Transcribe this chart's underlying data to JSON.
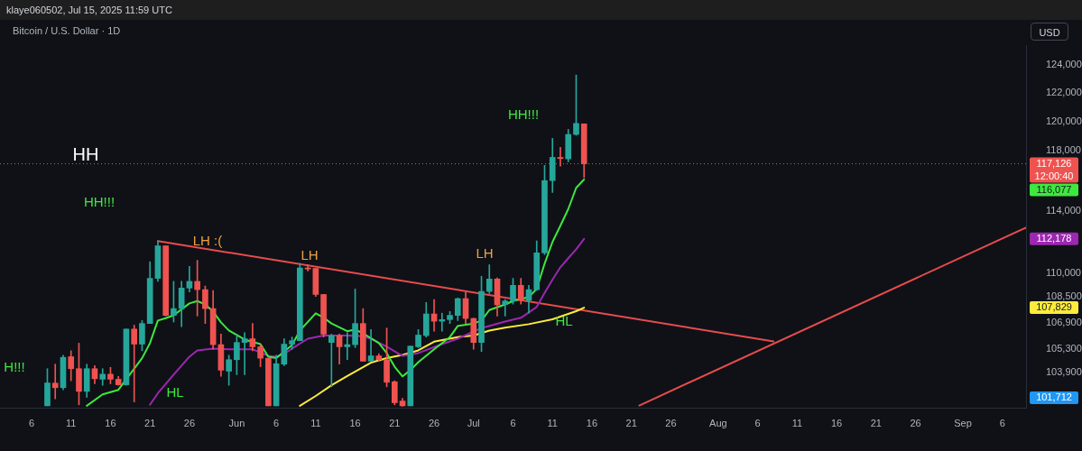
{
  "chart_data": {
    "type": "candlestick",
    "title": "Bitcoin / U.S. Dollar · 1D",
    "subtitle": "klaye060502, Jul 15, 2025 11:59 UTC",
    "ylabel": "USD",
    "x": [
      "2025-05-08",
      "2025-05-09",
      "2025-05-10",
      "2025-05-11",
      "2025-05-12",
      "2025-05-13",
      "2025-05-14",
      "2025-05-15",
      "2025-05-16",
      "2025-05-17",
      "2025-05-18",
      "2025-05-19",
      "2025-05-20",
      "2025-05-21",
      "2025-05-22",
      "2025-05-23",
      "2025-05-24",
      "2025-05-25",
      "2025-05-26",
      "2025-05-27",
      "2025-05-28",
      "2025-05-29",
      "2025-05-30",
      "2025-05-31",
      "2025-06-01",
      "2025-06-02",
      "2025-06-03",
      "2025-06-04",
      "2025-06-05",
      "2025-06-06",
      "2025-06-07",
      "2025-06-08",
      "2025-06-09",
      "2025-06-10",
      "2025-06-11",
      "2025-06-12",
      "2025-06-13",
      "2025-06-14",
      "2025-06-15",
      "2025-06-16",
      "2025-06-17",
      "2025-06-18",
      "2025-06-19",
      "2025-06-20",
      "2025-06-21",
      "2025-06-22",
      "2025-06-23",
      "2025-06-24",
      "2025-06-25",
      "2025-06-26",
      "2025-06-27",
      "2025-06-28",
      "2025-06-29",
      "2025-06-30",
      "2025-07-01",
      "2025-07-02",
      "2025-07-03",
      "2025-07-04",
      "2025-07-05",
      "2025-07-06",
      "2025-07-07",
      "2025-07-08",
      "2025-07-09",
      "2025-07-10",
      "2025-07-11",
      "2025-07-12",
      "2025-07-13",
      "2025-07-14",
      "2025-07-15"
    ],
    "ohlc": [
      [
        101910,
        104110,
        101910,
        103260
      ],
      [
        103250,
        104380,
        102320,
        102980
      ],
      [
        102980,
        104920,
        102850,
        104790
      ],
      [
        104830,
        105190,
        103390,
        104110
      ],
      [
        104110,
        105650,
        101970,
        102760
      ],
      [
        102760,
        104380,
        102410,
        104110
      ],
      [
        104110,
        104290,
        103210,
        103510
      ],
      [
        103480,
        104110,
        103120,
        103780
      ],
      [
        103780,
        104190,
        103210,
        103480
      ],
      [
        103480,
        103650,
        103120,
        103150
      ],
      [
        103150,
        106510,
        103120,
        106510
      ],
      [
        106510,
        106750,
        102140,
        105590
      ],
      [
        105590,
        107030,
        105190,
        106850
      ],
      [
        106850,
        110710,
        106850,
        109660
      ],
      [
        109660,
        112050,
        109470,
        111730
      ],
      [
        111730,
        111730,
        107310,
        107350
      ],
      [
        107350,
        109470,
        106940,
        107770
      ],
      [
        107770,
        109470,
        106660,
        109050
      ],
      [
        109050,
        110420,
        108810,
        109470
      ],
      [
        109470,
        110800,
        107310,
        108950
      ],
      [
        108950,
        109180,
        106850,
        107770
      ],
      [
        107770,
        108900,
        105280,
        105560
      ],
      [
        105560,
        106200,
        103650,
        104020
      ],
      [
        103960,
        104920,
        103120,
        104650
      ],
      [
        104650,
        106200,
        103750,
        105690
      ],
      [
        105690,
        106290,
        103750,
        105920
      ],
      [
        105920,
        106850,
        105190,
        105430
      ],
      [
        105430,
        105560,
        104230,
        104740
      ],
      [
        104740,
        104740,
        101910,
        101910
      ],
      [
        101910,
        104920,
        101910,
        104410
      ],
      [
        104380,
        105920,
        104290,
        105590
      ],
      [
        105590,
        106020,
        105280,
        105800
      ],
      [
        105800,
        110610,
        105800,
        110320
      ],
      [
        110320,
        110530,
        110130,
        110250
      ],
      [
        110290,
        110290,
        108520,
        108650
      ],
      [
        108650,
        108650,
        106020,
        106200
      ],
      [
        105690,
        106200,
        103030,
        106110
      ],
      [
        106110,
        106200,
        104380,
        105430
      ],
      [
        105430,
        106290,
        104650,
        105560
      ],
      [
        105560,
        108990,
        105380,
        106850
      ],
      [
        106850,
        107770,
        104560,
        104560
      ],
      [
        104560,
        106480,
        104560,
        104880
      ],
      [
        104880,
        105010,
        104560,
        104650
      ],
      [
        104650,
        106570,
        103030,
        103300
      ],
      [
        103330,
        103390,
        101970,
        102090
      ],
      [
        102190,
        102350,
        101880,
        101910
      ],
      [
        101910,
        105470,
        101910,
        105470
      ],
      [
        105430,
        106480,
        105380,
        106140
      ],
      [
        106110,
        108150,
        106020,
        107440
      ],
      [
        107440,
        108330,
        106380,
        106990
      ],
      [
        106990,
        107490,
        106380,
        107090
      ],
      [
        107090,
        107590,
        106850,
        107350
      ],
      [
        107350,
        108430,
        107030,
        108390
      ],
      [
        108390,
        108810,
        106850,
        107160
      ],
      [
        107160,
        107180,
        105280,
        105690
      ],
      [
        105690,
        109790,
        105140,
        108840
      ],
      [
        108840,
        110520,
        108710,
        109620
      ],
      [
        109620,
        109690,
        107310,
        108000
      ],
      [
        108020,
        108330,
        107310,
        108240
      ],
      [
        108240,
        109660,
        108050,
        109220
      ],
      [
        109220,
        109660,
        108050,
        108280
      ],
      [
        108280,
        109220,
        107490,
        108950
      ],
      [
        108950,
        112050,
        108900,
        111280
      ],
      [
        111280,
        117020,
        111170,
        116000
      ],
      [
        116000,
        118850,
        115210,
        117560
      ],
      [
        117560,
        118240,
        116970,
        117480
      ],
      [
        117460,
        119470,
        117260,
        119120
      ],
      [
        119120,
        123260,
        119060,
        119880
      ],
      [
        119850,
        119850,
        116200,
        117126
      ]
    ],
    "colors": [
      "#26a69a",
      "#ef5350",
      "#26a69a",
      "#ef5350",
      "#ef5350",
      "#26a69a",
      "#ef5350",
      "#26a69a",
      "#ef5350",
      "#ef5350",
      "#26a69a",
      "#ef5350",
      "#26a69a",
      "#26a69a",
      "#26a69a",
      "#ef5350",
      "#26a69a",
      "#26a69a",
      "#26a69a",
      "#ef5350",
      "#ef5350",
      "#ef5350",
      "#ef5350",
      "#26a69a",
      "#26a69a",
      "#26a69a",
      "#ef5350",
      "#ef5350",
      "#ef5350",
      "#26a69a",
      "#26a69a",
      "#26a69a",
      "#26a69a",
      "#ef5350",
      "#ef5350",
      "#ef5350",
      "#26a69a",
      "#ef5350",
      "#26a69a",
      "#26a69a",
      "#ef5350",
      "#26a69a",
      "#ef5350",
      "#ef5350",
      "#ef5350",
      "#ef5350",
      "#26a69a",
      "#26a69a",
      "#26a69a",
      "#ef5350",
      "#26a69a",
      "#26a69a",
      "#26a69a",
      "#ef5350",
      "#ef5350",
      "#26a69a",
      "#26a69a",
      "#ef5350",
      "#26a69a",
      "#26a69a",
      "#ef5350",
      "#26a69a",
      "#26a69a",
      "#26a69a",
      "#26a69a",
      "#ef5350",
      "#26a69a",
      "#26a69a",
      "#ef5350"
    ],
    "series": [
      {
        "type": "line",
        "color": "#3ee83e",
        "x": [
          "2025-05-13",
          "2025-05-15",
          "2025-05-17",
          "2025-05-18",
          "2025-05-20",
          "2025-05-21",
          "2025-05-22",
          "2025-05-23",
          "2025-05-24",
          "2025-05-26",
          "2025-05-27",
          "2025-05-28",
          "2025-05-29",
          "2025-05-30",
          "2025-05-31",
          "2025-06-02",
          "2025-06-04",
          "2025-06-05",
          "2025-06-06",
          "2025-06-07",
          "2025-06-08",
          "2025-06-09",
          "2025-06-11",
          "2025-06-12",
          "2025-06-13",
          "2025-06-15",
          "2025-06-16",
          "2025-06-17",
          "2025-06-19",
          "2025-06-20",
          "2025-06-21",
          "2025-06-22",
          "2025-06-23",
          "2025-06-24",
          "2025-06-26",
          "2025-06-28",
          "2025-06-29",
          "2025-07-01",
          "2025-07-02",
          "2025-07-03",
          "2025-07-05",
          "2025-07-06",
          "2025-07-08",
          "2025-07-09",
          "2025-07-10",
          "2025-07-11",
          "2025-07-12",
          "2025-07-13",
          "2025-07-14",
          "2025-07-15"
        ],
        "values": [
          101910,
          102580,
          102850,
          103480,
          104740,
          105650,
          107030,
          107180,
          107360,
          108090,
          108240,
          108030,
          107590,
          106920,
          106420,
          105870,
          105590,
          104830,
          104740,
          null,
          105540,
          106420,
          107480,
          107210,
          106850,
          106380,
          106480,
          106250,
          105650,
          105050,
          104230,
          103650,
          104020,
          104500,
          105280,
          106020,
          106700,
          106850,
          107030,
          107680,
          108030,
          108240,
          108490,
          108990,
          110590,
          111980,
          113030,
          114120,
          115520,
          116077
        ]
      },
      {
        "type": "line",
        "color": "#9c27b0",
        "x": [
          "2025-05-21",
          "2025-05-22",
          "2025-05-24",
          "2025-05-26",
          "2025-05-27",
          "2025-05-29",
          "2025-05-31",
          "2025-06-03",
          "2025-06-05",
          "2025-06-06",
          "2025-06-07",
          "2025-06-08",
          "2025-06-10",
          "2025-06-12",
          "2025-06-15",
          "2025-06-17",
          "2025-06-18",
          "2025-06-20",
          "2025-06-22",
          "2025-06-24",
          "2025-06-27",
          "2025-06-29",
          "2025-07-02",
          "2025-07-05",
          "2025-07-07",
          "2025-07-09",
          "2025-07-10",
          "2025-07-11",
          "2025-07-12",
          "2025-07-13",
          "2025-07-14",
          "2025-07-15"
        ],
        "values": [
          101970,
          102650,
          103750,
          104830,
          105210,
          105320,
          105280,
          105280,
          104880,
          104830,
          104990,
          105320,
          105920,
          106110,
          106110,
          106070,
          105920,
          105430,
          104880,
          105050,
          105590,
          105920,
          106570,
          106970,
          107200,
          107870,
          108740,
          109580,
          110360,
          110940,
          111510,
          112178
        ]
      },
      {
        "type": "line",
        "color": "#ffeb3b",
        "x": [
          "2025-06-09",
          "2025-06-11",
          "2025-06-13",
          "2025-06-15",
          "2025-06-18",
          "2025-06-20",
          "2025-06-22",
          "2025-06-24",
          "2025-06-26",
          "2025-06-29",
          "2025-07-01",
          "2025-07-03",
          "2025-07-05",
          "2025-07-08",
          "2025-07-11",
          "2025-07-14",
          "2025-07-15"
        ],
        "values": [
          101910,
          102490,
          103120,
          103670,
          104470,
          104750,
          104940,
          105210,
          105740,
          106020,
          106110,
          106420,
          106590,
          106810,
          107110,
          107610,
          107829
        ]
      },
      {
        "type": "line",
        "color": "#e84c4c",
        "x": [
          "2025-05-22",
          "2025-08-08"
        ],
        "values": [
          112040,
          105760
        ]
      },
      {
        "type": "line",
        "color": "#e84c4c",
        "x": [
          "2025-07-22",
          "2025-09-09"
        ],
        "values": [
          101930,
          112910
        ]
      }
    ],
    "annotations": [
      "HH",
      "HH!!!",
      "LH :(",
      "LH",
      "LH",
      "HH!!!",
      "HL",
      "HL",
      "H!!!",
      "117,126",
      "12:00:40",
      "116,077",
      "112,178",
      "107,829",
      "101,712"
    ],
    "ref_lines": [
      {
        "axis": "y",
        "value": 117126,
        "color": "#ef5350",
        "line_style": "dotted"
      }
    ],
    "xlim": [
      "2025-05-02",
      "2025-09-09"
    ],
    "xticks": [
      {
        "value": "2025-05-06",
        "label": "6"
      },
      {
        "value": "2025-05-11",
        "label": "11"
      },
      {
        "value": "2025-05-16",
        "label": "16"
      },
      {
        "value": "2025-05-21",
        "label": "21"
      },
      {
        "value": "2025-05-26",
        "label": "26"
      },
      {
        "value": "2025-06-01",
        "label": "Jun"
      },
      {
        "value": "2025-06-06",
        "label": "6"
      },
      {
        "value": "2025-06-11",
        "label": "11"
      },
      {
        "value": "2025-06-16",
        "label": "16"
      },
      {
        "value": "2025-06-21",
        "label": "21"
      },
      {
        "value": "2025-06-26",
        "label": "26"
      },
      {
        "value": "2025-07-01",
        "label": "Jul"
      },
      {
        "value": "2025-07-06",
        "label": "6"
      },
      {
        "value": "2025-07-11",
        "label": "11"
      },
      {
        "value": "2025-07-16",
        "label": "16"
      },
      {
        "value": "2025-07-21",
        "label": "21"
      },
      {
        "value": "2025-07-26",
        "label": "26"
      },
      {
        "value": "2025-08-01",
        "label": "Aug"
      },
      {
        "value": "2025-08-06",
        "label": "6"
      },
      {
        "value": "2025-08-11",
        "label": "11"
      },
      {
        "value": "2025-08-16",
        "label": "16"
      },
      {
        "value": "2025-08-21",
        "label": "21"
      },
      {
        "value": "2025-08-26",
        "label": "26"
      },
      {
        "value": "2025-09-01",
        "label": "Sep"
      },
      {
        "value": "2025-09-06",
        "label": "6"
      }
    ],
    "ylim": [
      101800,
      125400
    ],
    "yticks": [
      {
        "value": 103900,
        "label": "103,900"
      },
      {
        "value": 105300,
        "label": "105,300"
      },
      {
        "value": 106900,
        "label": "106,900"
      },
      {
        "value": 108500,
        "label": "108,500"
      },
      {
        "value": 110000,
        "label": "110,000"
      },
      {
        "value": 114000,
        "label": "114,000"
      },
      {
        "value": 118000,
        "label": "118,000"
      },
      {
        "value": 120000,
        "label": "120,000"
      },
      {
        "value": 122000,
        "label": "122,000"
      },
      {
        "value": 124000,
        "label": "124,000"
      }
    ],
    "log": true,
    "grid": false,
    "legend": false,
    "marker": "none"
  }
}
